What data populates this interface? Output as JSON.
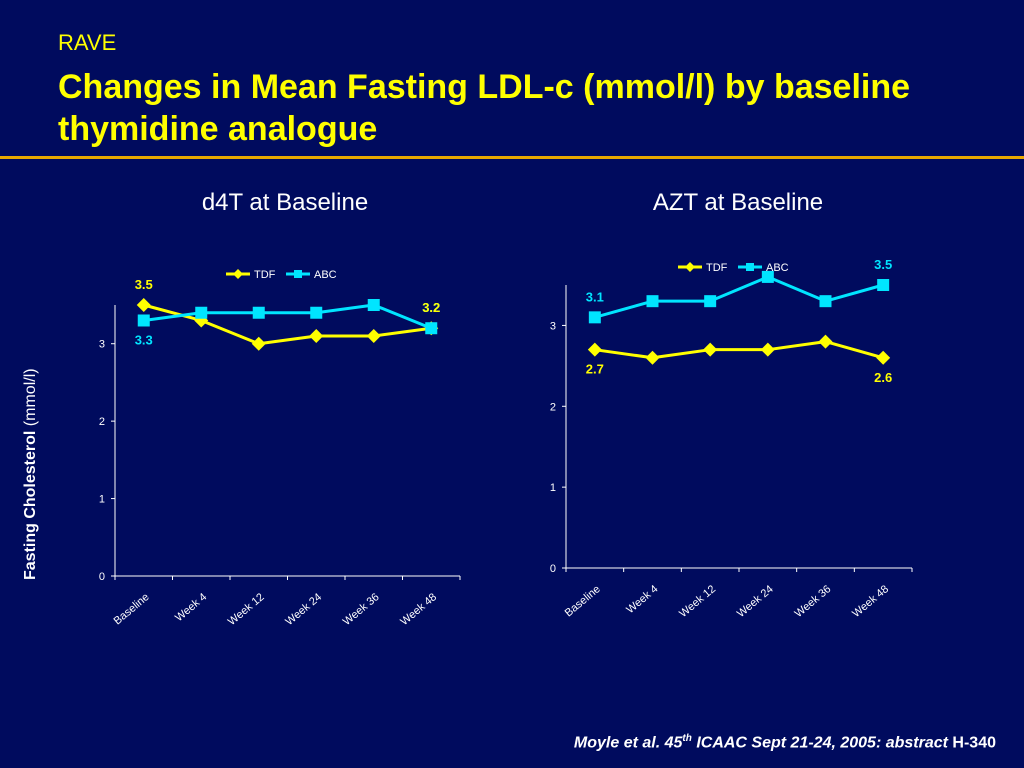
{
  "slide": {
    "kicker": "RAVE",
    "title": "Changes in Mean Fasting LDL-c (mmol/l) by baseline thymidine analogue",
    "y_caption_bold": "Fasting Cholesterol",
    "y_caption_unit": "(mmol/l)",
    "footer_text": "Moyle et al. 45",
    "footer_sup": "th",
    "footer_rest": " ICAAC Sept 21-24, 2005: abstract ",
    "footer_code": "H-340"
  },
  "colors": {
    "background": "#000b5e",
    "title": "#ffff00",
    "rule": "#e8a800",
    "tdf": "#ffff00",
    "abc": "#00e5ff",
    "axis": "#ffffff"
  },
  "chart_data": [
    {
      "type": "line",
      "title": "d4T at Baseline",
      "categories": [
        "Baseline",
        "Week 4",
        "Week 12",
        "Week 24",
        "Week 36",
        "Week 48"
      ],
      "ylim": [
        0,
        3.5
      ],
      "yticks": [
        0,
        1,
        2,
        3
      ],
      "xlabel": "",
      "ylabel": "",
      "legend": "top-center",
      "series": [
        {
          "name": "TDF",
          "marker": "diamond",
          "values": [
            3.5,
            3.3,
            3.0,
            3.1,
            3.1,
            3.2
          ]
        },
        {
          "name": "ABC",
          "marker": "square",
          "values": [
            3.3,
            3.4,
            3.4,
            3.4,
            3.5,
            3.2
          ]
        }
      ],
      "annotations": [
        {
          "text": "3.5",
          "series": "TDF",
          "index": 0
        },
        {
          "text": "3.3",
          "series": "ABC",
          "index": 0
        },
        {
          "text": "3.2",
          "series": "ABC",
          "index": 5
        },
        {
          "text": "3.2",
          "series": "TDF",
          "index": 5
        }
      ]
    },
    {
      "type": "line",
      "title": "AZT at Baseline",
      "categories": [
        "Baseline",
        "Week 4",
        "Week 12",
        "Week 24",
        "Week 36",
        "Week 48"
      ],
      "ylim": [
        0,
        3.5
      ],
      "yticks": [
        0,
        1,
        2,
        3
      ],
      "xlabel": "",
      "ylabel": "",
      "legend": "top-center",
      "series": [
        {
          "name": "TDF",
          "marker": "diamond",
          "values": [
            2.7,
            2.6,
            2.7,
            2.7,
            2.8,
            2.6
          ]
        },
        {
          "name": "ABC",
          "marker": "square",
          "values": [
            3.1,
            3.3,
            3.3,
            3.6,
            3.3,
            3.5
          ]
        }
      ],
      "annotations": [
        {
          "text": "3.1",
          "series": "ABC",
          "index": 0
        },
        {
          "text": "2.7",
          "series": "TDF",
          "index": 0
        },
        {
          "text": "3.5",
          "series": "ABC",
          "index": 5
        },
        {
          "text": "2.6",
          "series": "TDF",
          "index": 5
        }
      ]
    }
  ]
}
